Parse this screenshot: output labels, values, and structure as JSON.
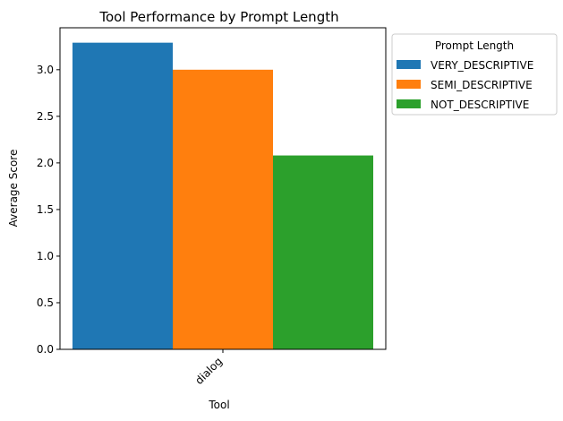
{
  "chart_data": {
    "type": "bar",
    "title": "Tool Performance by Prompt Length",
    "xlabel": "Tool",
    "ylabel": "Average Score",
    "categories": [
      "dialog"
    ],
    "series": [
      {
        "name": "VERY_DESCRIPTIVE",
        "values": [
          3.29
        ],
        "color": "#1f77b4"
      },
      {
        "name": "SEMI_DESCRIPTIVE",
        "values": [
          3.0
        ],
        "color": "#ff7f0e"
      },
      {
        "name": "NOT_DESCRIPTIVE",
        "values": [
          2.08
        ],
        "color": "#2ca02c"
      }
    ],
    "ylim": [
      0,
      3.45
    ],
    "yticks": [
      "0.0",
      "0.5",
      "1.0",
      "1.5",
      "2.0",
      "2.5",
      "3.0"
    ],
    "grid": false,
    "legend": {
      "title": "Prompt Length",
      "placement": "outside-upper-right"
    }
  }
}
